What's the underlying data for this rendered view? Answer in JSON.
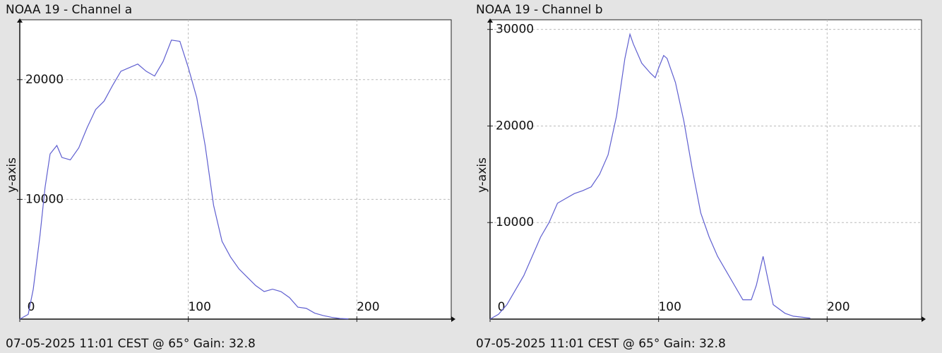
{
  "chart_data": [
    {
      "type": "line",
      "title": "NOAA 19 - Channel a",
      "y_label": "y-axis",
      "caption": "07-05-2025 11:01 CEST @ 65° Gain: 32.8",
      "xlim": [
        0,
        256
      ],
      "ylim": [
        0,
        25000
      ],
      "xticks": [
        0,
        100,
        200
      ],
      "yticks": [
        10000,
        20000
      ],
      "grid": true,
      "series": [
        {
          "color": "#5f5fd0",
          "x": [
            0,
            5,
            8,
            12,
            15,
            18,
            22,
            25,
            30,
            35,
            40,
            45,
            50,
            55,
            60,
            65,
            70,
            75,
            80,
            85,
            90,
            95,
            100,
            105,
            110,
            115,
            120,
            125,
            130,
            135,
            140,
            145,
            150,
            155,
            160,
            165,
            170,
            175,
            180,
            185,
            190,
            195
          ],
          "values": [
            0,
            400,
            2500,
            7000,
            11000,
            13800,
            14500,
            13500,
            13300,
            14300,
            16000,
            17500,
            18200,
            19500,
            20700,
            21000,
            21300,
            20700,
            20300,
            21500,
            23300,
            23200,
            21000,
            18500,
            14500,
            9500,
            6500,
            5200,
            4200,
            3500,
            2800,
            2300,
            2500,
            2300,
            1800,
            1000,
            900,
            500,
            300,
            150,
            50,
            20
          ]
        }
      ]
    },
    {
      "type": "line",
      "title": "NOAA 19 - Channel b",
      "y_label": "y-axis",
      "caption": "07-05-2025 11:01 CEST @ 65° Gain: 32.8",
      "xlim": [
        0,
        256
      ],
      "ylim": [
        0,
        31000
      ],
      "xticks": [
        0,
        100,
        200
      ],
      "yticks": [
        10000,
        20000,
        30000
      ],
      "grid": true,
      "series": [
        {
          "color": "#5f5fd0",
          "x": [
            0,
            5,
            10,
            15,
            20,
            25,
            30,
            35,
            40,
            45,
            50,
            55,
            60,
            65,
            70,
            75,
            80,
            83,
            85,
            90,
            95,
            98,
            100,
            103,
            105,
            110,
            115,
            120,
            125,
            130,
            135,
            140,
            145,
            150,
            155,
            158,
            162,
            165,
            168,
            175,
            180,
            190
          ],
          "values": [
            0,
            500,
            1500,
            3000,
            4500,
            6500,
            8500,
            10000,
            12000,
            12500,
            13000,
            13300,
            13700,
            15000,
            17000,
            21000,
            27000,
            29500,
            28500,
            26500,
            25500,
            25000,
            26000,
            27300,
            27000,
            24500,
            20500,
            15500,
            11000,
            8500,
            6500,
            5000,
            3500,
            2000,
            2000,
            3500,
            6500,
            4000,
            1500,
            600,
            300,
            100
          ]
        }
      ]
    }
  ]
}
